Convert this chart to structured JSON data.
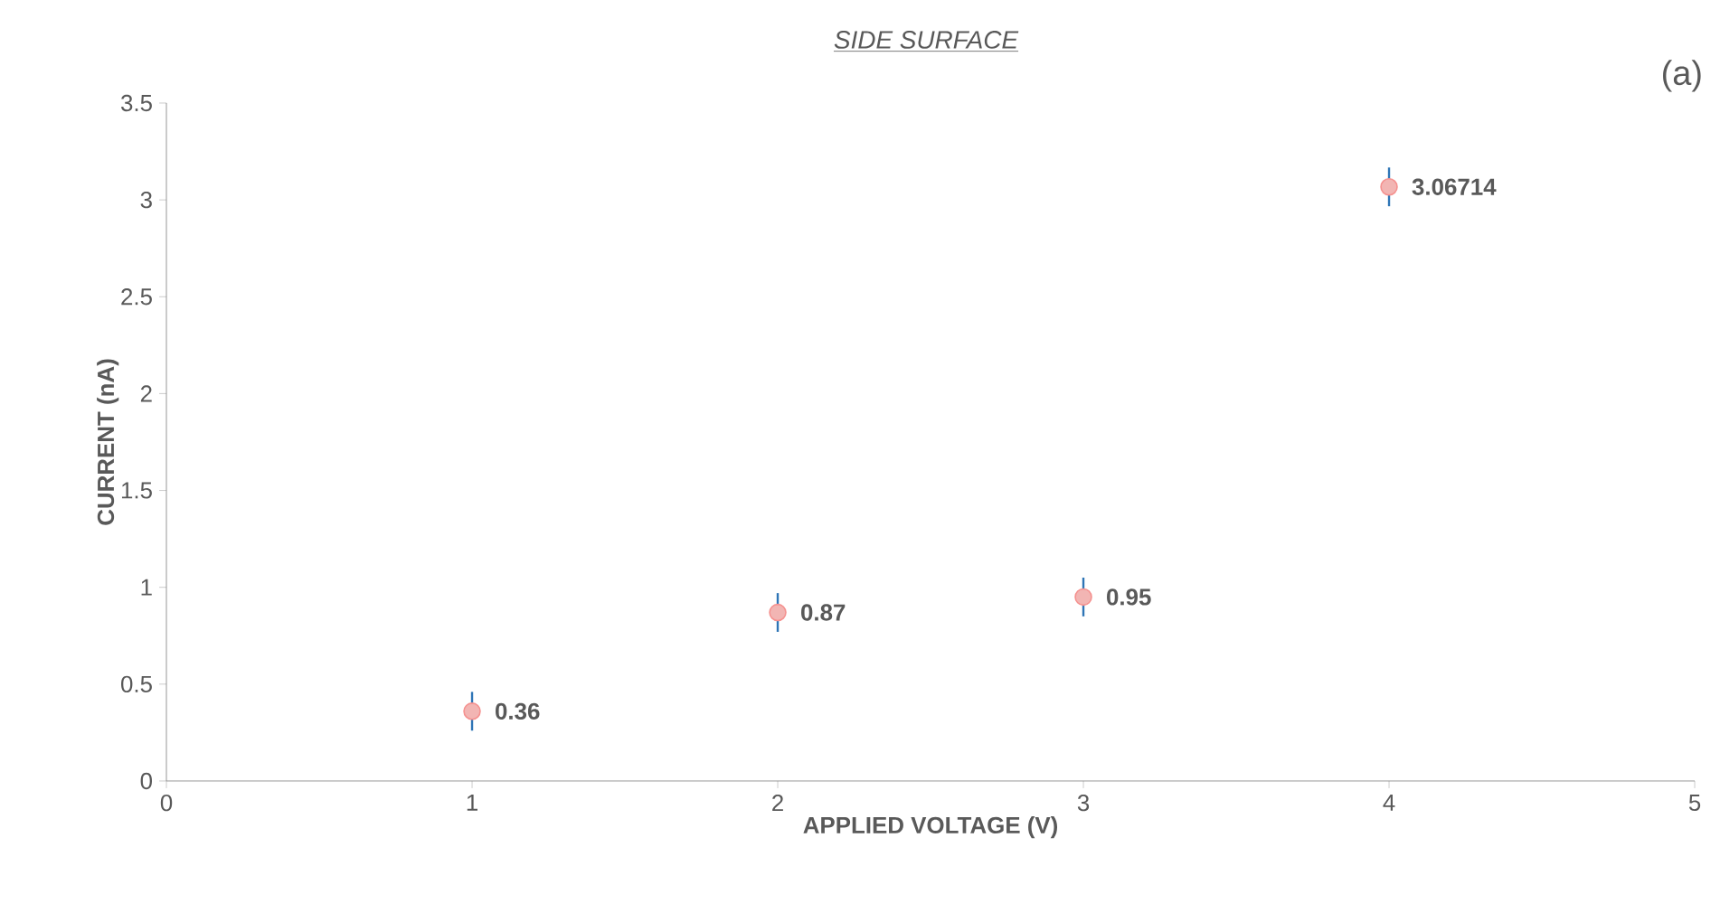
{
  "chart_data": {
    "type": "scatter",
    "title": "SIDE SURFACE",
    "xlabel": "APPLIED VOLTAGE (V)",
    "ylabel": "CURRENT (nA)",
    "annotations": [
      "(a)"
    ],
    "x": [
      1,
      2,
      3,
      4
    ],
    "values": [
      0.36,
      0.87,
      0.95,
      3.06714
    ],
    "errors": [
      0.1,
      0.1,
      0.1,
      0.1
    ],
    "color": "#f2b5b3",
    "data_labels": true,
    "grid": false,
    "xlim": [
      0,
      5
    ],
    "xticks": [
      0,
      1,
      2,
      3,
      4,
      5
    ],
    "ylim": [
      0,
      3.5
    ],
    "yticks": [
      0,
      0.5,
      1,
      1.5,
      2,
      2.5,
      3,
      3.5
    ]
  }
}
